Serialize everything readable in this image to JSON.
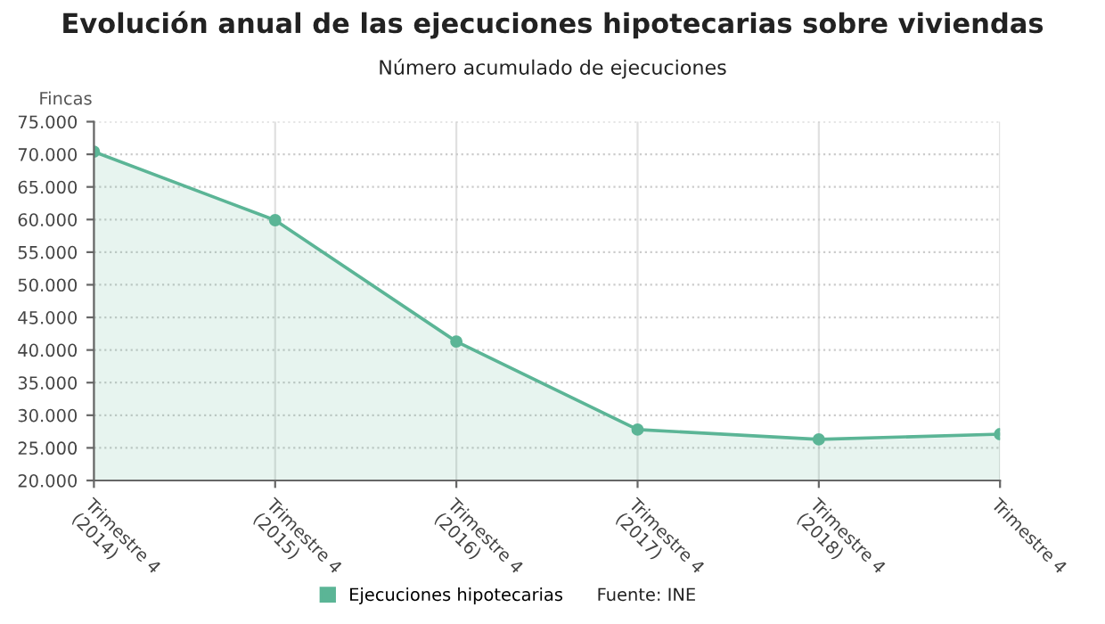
{
  "chart_data": {
    "type": "area",
    "title": "Evolución anual de las ejecuciones hipotecarias sobre viviendas",
    "subtitle": "Número acumulado de ejecuciones",
    "ylabel": "Fincas",
    "categories": [
      "Trimestre 4\n(2014)",
      "Trimestre 4\n(2015)",
      "Trimestre 4\n(2016)",
      "Trimestre 4\n(2017)",
      "Trimestre 4\n(2018)",
      "Trimestre 4"
    ],
    "series": [
      {
        "name": "Ejecuciones hipotecarias",
        "color": "#5bb596",
        "values": [
          70400,
          59900,
          41300,
          27800,
          26300,
          27100
        ]
      }
    ],
    "ylim": [
      20000,
      75000
    ],
    "yticks": [
      {
        "value": 20000,
        "label": "20.000"
      },
      {
        "value": 25000,
        "label": "25.000"
      },
      {
        "value": 30000,
        "label": "30.000"
      },
      {
        "value": 35000,
        "label": "35.000"
      },
      {
        "value": 40000,
        "label": "40.000"
      },
      {
        "value": 45000,
        "label": "45.000"
      },
      {
        "value": 50000,
        "label": "50.000"
      },
      {
        "value": 55000,
        "label": "55.000"
      },
      {
        "value": 60000,
        "label": "60.000"
      },
      {
        "value": 65000,
        "label": "65.000"
      },
      {
        "value": 70000,
        "label": "70.000"
      },
      {
        "value": 75000,
        "label": "75.000"
      }
    ],
    "grid": true,
    "legend": "bottom",
    "marker": "circle",
    "line_style": "solid",
    "annotations": [
      "Fuente: INE"
    ]
  }
}
